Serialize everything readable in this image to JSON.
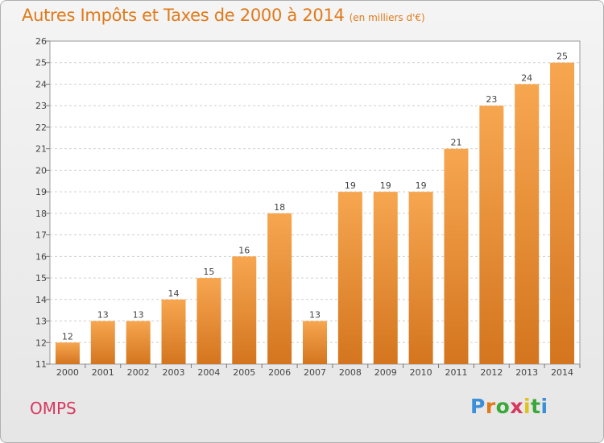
{
  "title": "Autres Impôts et Taxes de 2000 à 2014",
  "unit_note": "(en milliers d'€)",
  "city": "OMPS",
  "logo_text": "Proxiti",
  "colors": {
    "bar_top": "#f7a650",
    "bar_bottom": "#d4751f",
    "title": "#e07a1a",
    "city": "#d8375e",
    "grid": "#cfcfcf"
  },
  "chart_data": {
    "type": "bar",
    "title": "Autres Impôts et Taxes de 2000 à 2014",
    "subtitle": "(en milliers d'€)",
    "categories": [
      "2000",
      "2001",
      "2002",
      "2003",
      "2004",
      "2005",
      "2006",
      "2007",
      "2008",
      "2009",
      "2010",
      "2011",
      "2012",
      "2013",
      "2014"
    ],
    "values": [
      12,
      13,
      13,
      14,
      15,
      16,
      18,
      13,
      19,
      19,
      19,
      21,
      23,
      24,
      25
    ],
    "ylim": [
      11,
      26
    ],
    "yticks": [
      11,
      12,
      13,
      14,
      15,
      16,
      17,
      18,
      19,
      20,
      21,
      22,
      23,
      24,
      25,
      26
    ],
    "grid": "horizontal dashed"
  }
}
